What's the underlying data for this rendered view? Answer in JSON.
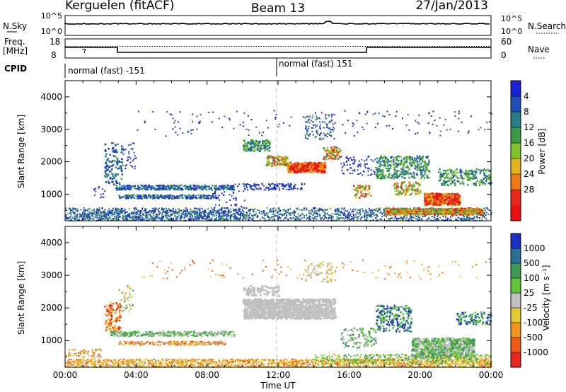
{
  "header": {
    "station": "Kerguelen (fitACF)",
    "beam": "Beam 13",
    "date": "27/Jan/2013"
  },
  "panels": {
    "noise_label": "N.Sky",
    "noise_search_label": "N.Search",
    "noise_ticks": [
      "10^5",
      "10^0"
    ],
    "freq_label_1": "Freq.",
    "freq_label_2": "[MHz]",
    "freq_ticks": [
      "18",
      "8"
    ],
    "nave_label": "Nave",
    "nave_ticks": [
      "60",
      "0"
    ],
    "cpid_label": "CPID",
    "cpid_segments": [
      "normal (fast) -151",
      "normal (fast) 151"
    ]
  },
  "chart_data": [
    {
      "type": "heatmap",
      "panel": "power",
      "ylabel": "Slant Range [km]",
      "colorbar_label": "Power [dB]",
      "x": {
        "range": [
          0,
          24
        ],
        "ticks": [
          "00:00",
          "04:00",
          "08:00",
          "12:00",
          "16:00",
          "20:00",
          "00:00"
        ]
      },
      "ylim": [
        180,
        4500
      ],
      "yticks": [
        1000,
        2000,
        3000,
        4000
      ],
      "colorbar_ticks": [
        "4",
        "8",
        "12",
        "16",
        "20",
        "24",
        "28"
      ],
      "colorbar_colors": [
        "#1a22d6",
        "#1f4fb8",
        "#267d86",
        "#3c9a48",
        "#7fc22e",
        "#e3b21c",
        "#f07a12",
        "#e8261a",
        "#e60f12"
      ]
    },
    {
      "type": "heatmap",
      "panel": "velocity",
      "ylabel": "Slant Range [km]",
      "colorbar_label": "Velocity [m s⁻¹]",
      "xlabel": "Time UT",
      "x": {
        "range": [
          0,
          24
        ],
        "ticks": [
          "00:00",
          "04:00",
          "08:00",
          "12:00",
          "16:00",
          "20:00",
          "00:00"
        ]
      },
      "ylim": [
        180,
        4500
      ],
      "yticks": [
        1000,
        2000,
        3000,
        4000
      ],
      "colorbar_ticks": [
        "1000",
        "500",
        "100",
        "25",
        "-25",
        "-100",
        "-500",
        "-1000"
      ],
      "colorbar_colors": [
        "#1a30c8",
        "#2a6e9a",
        "#3f9a55",
        "#62c43a",
        "#c0c0c0",
        "#e6c830",
        "#f0961e",
        "#ee5a14",
        "#e8261a"
      ]
    }
  ]
}
